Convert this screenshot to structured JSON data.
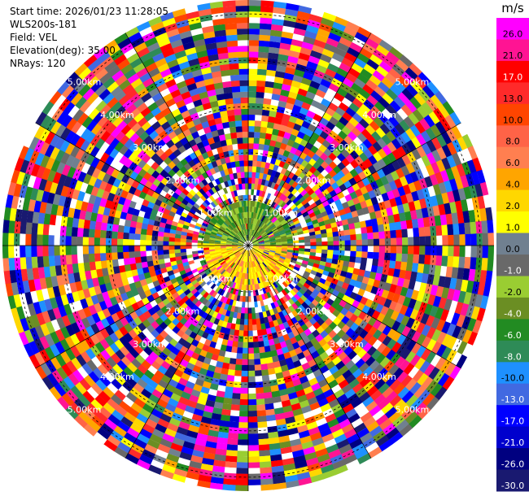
{
  "header": {
    "start_time": "Start time: 2026/01/23 11:28:05",
    "instrument": "WLS200s-181",
    "field": "Field: VEL",
    "elevation": "Elevation(deg): 35.00",
    "nrays": "NRays: 120"
  },
  "colorbar": {
    "unit": "m/s",
    "ticks": [
      "26.0",
      "21.0",
      "17.0",
      "13.0",
      "10.0",
      "8.0",
      "6.0",
      "4.0",
      "2.0",
      "1.0",
      "0.0",
      "-1.0",
      "-2.0",
      "-4.0",
      "-6.0",
      "-8.0",
      "-10.0",
      "-13.0",
      "-17.0",
      "-21.0",
      "-26.0",
      "-30.0"
    ],
    "colors": [
      "#ff00ff",
      "#ff1493",
      "#ff0000",
      "#ff2a2a",
      "#ff4500",
      "#ff6347",
      "#ff7f50",
      "#ffa500",
      "#ffd700",
      "#ffff00",
      "#708090",
      "#696969",
      "#9acd32",
      "#6b8e23",
      "#228b22",
      "#2e8b57",
      "#1e90ff",
      "#4169e1",
      "#0000ff",
      "#0000cd",
      "#000080",
      "#191970"
    ]
  },
  "chart_data": {
    "type": "ppi",
    "field": "VEL",
    "units": "m/s",
    "elevation_deg": 35.0,
    "n_rays": 120,
    "range_ring_labels_km": [
      "1.00km",
      "2.00km",
      "3.00km",
      "4.00km",
      "5.00km"
    ],
    "range_rings_km": [
      1,
      2,
      3,
      4,
      5
    ],
    "max_range_km": 5.3,
    "near_field_pattern": {
      "north_half": "green / yellow-green (negative velocities)",
      "south_half": "yellow / orange (positive velocities)",
      "radius_km": 0.95
    },
    "outer_field": "noisy, random colors across full scale"
  }
}
